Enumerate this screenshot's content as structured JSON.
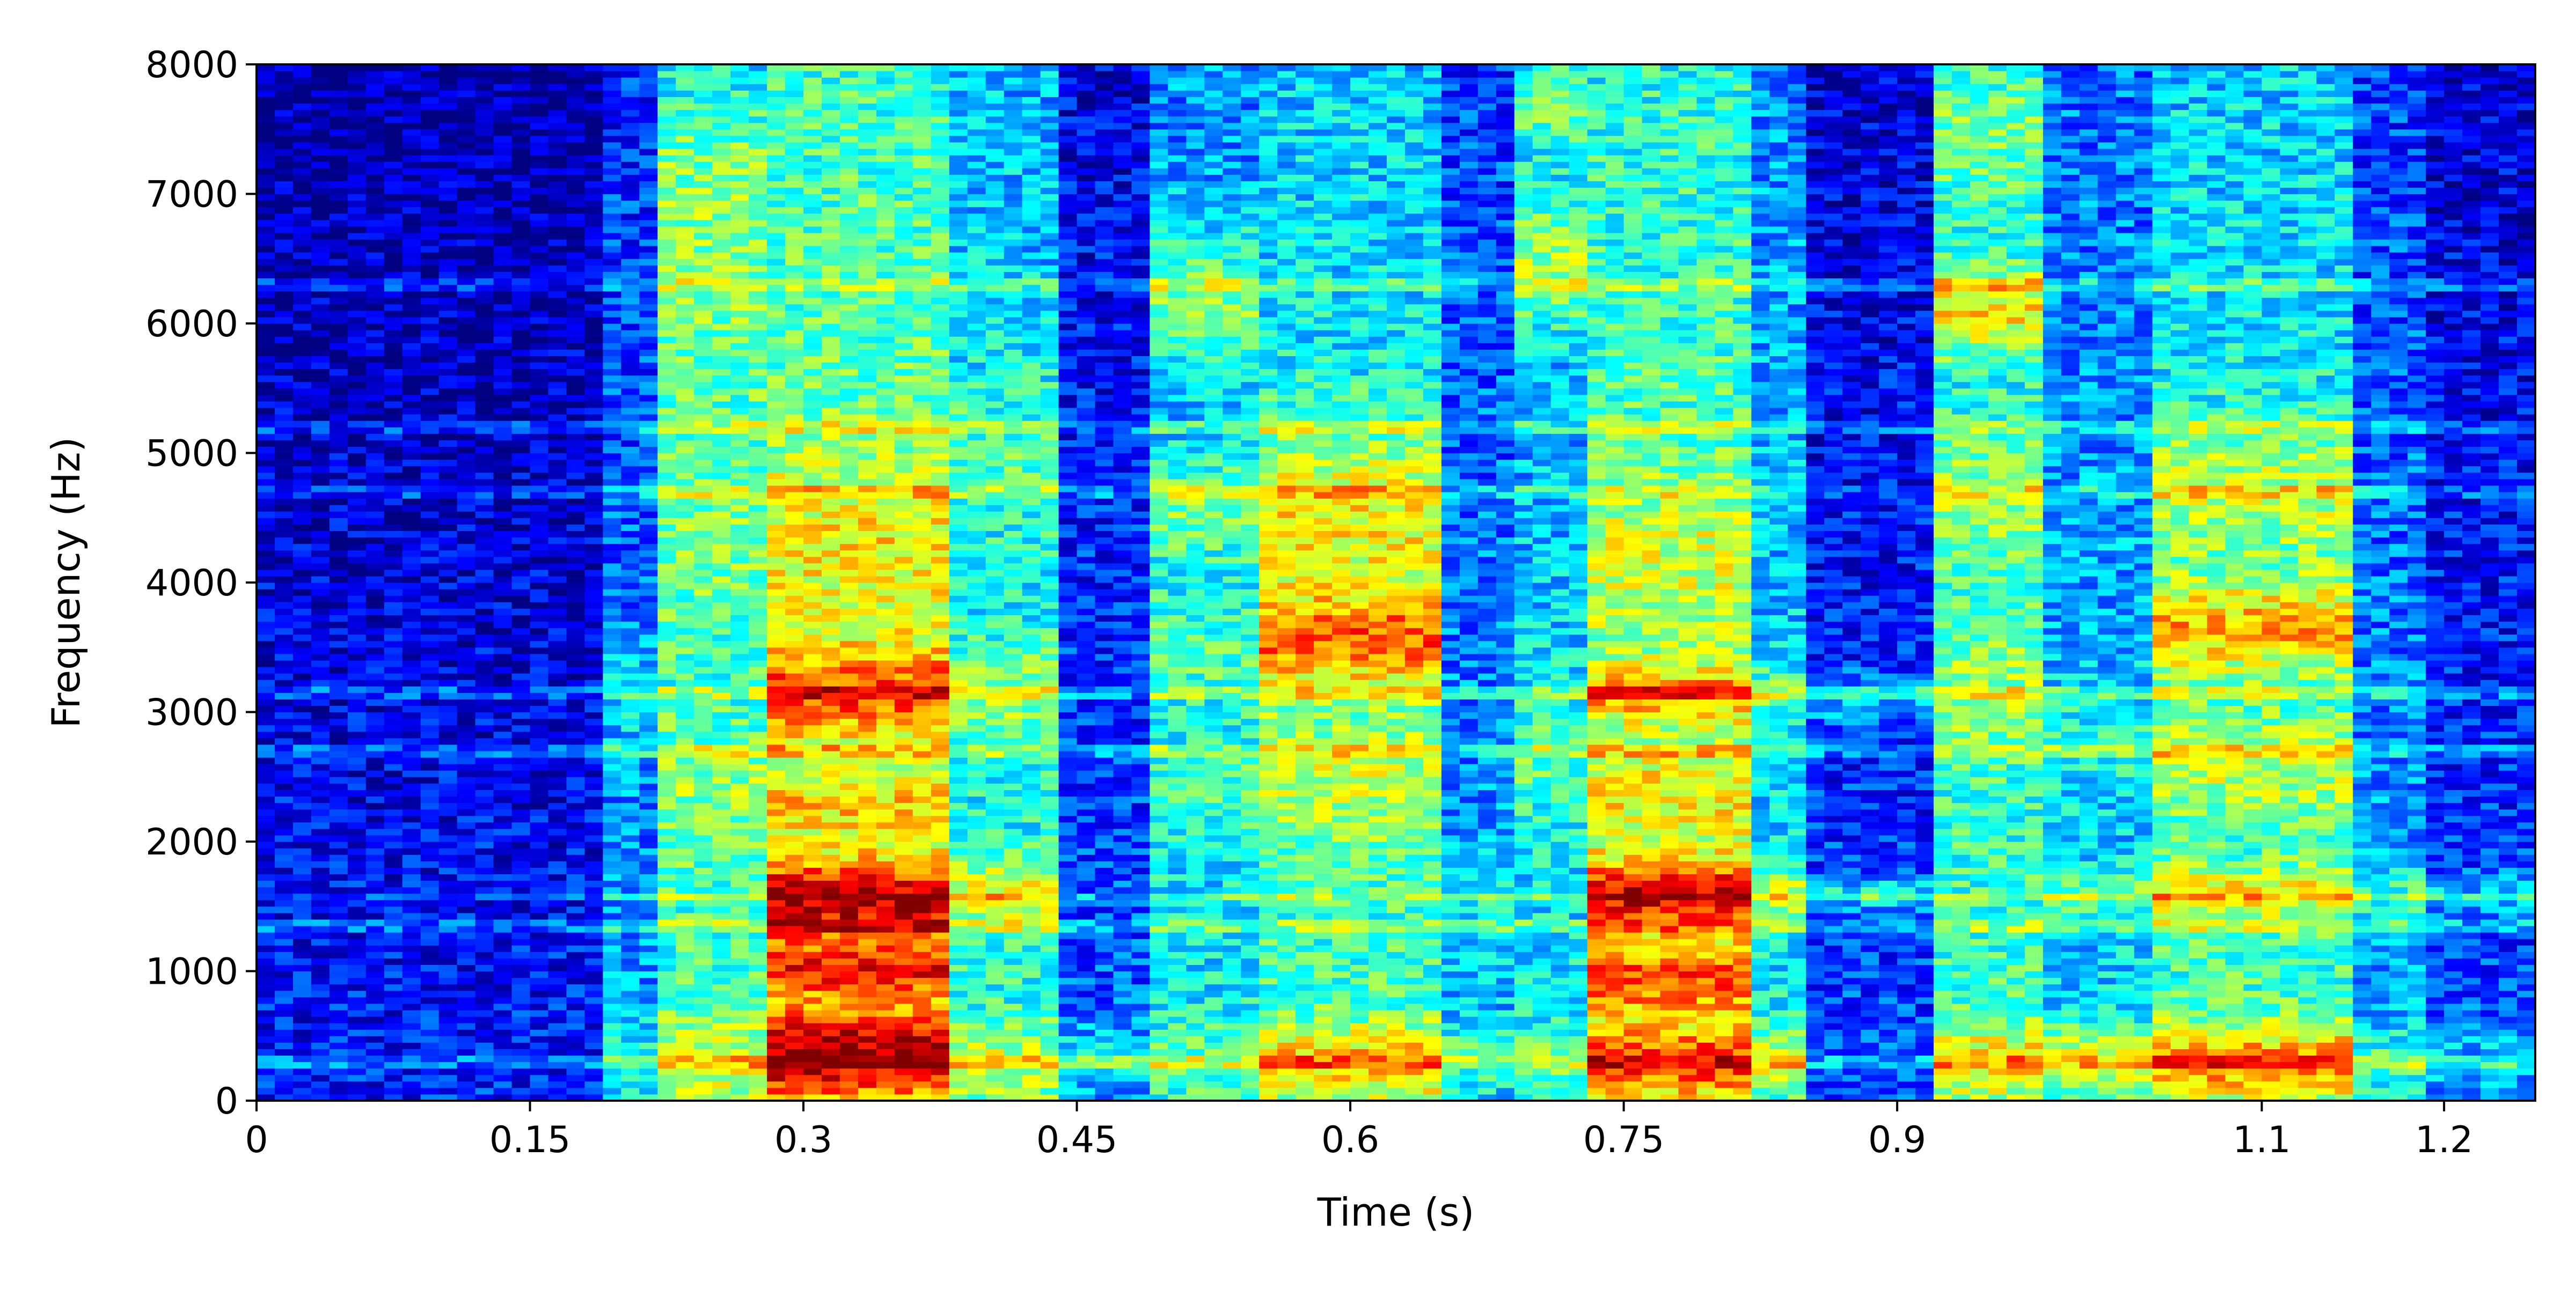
{
  "chart_data": {
    "type": "heatmap",
    "subtype": "spectrogram",
    "title": "",
    "xlabel": "Time (s)",
    "ylabel": "Frequency (Hz)",
    "xlim": [
      0,
      1.25
    ],
    "ylim": [
      0,
      8000
    ],
    "xticks": [
      0,
      0.15,
      0.3,
      0.45,
      0.6,
      0.75,
      0.9,
      1.1,
      1.2
    ],
    "xtick_labels": [
      "0",
      "0.15",
      "0.3",
      "0.45",
      "0.6",
      "0.75",
      "0.9",
      "1.1",
      "1.2"
    ],
    "yticks": [
      0,
      1000,
      2000,
      3000,
      4000,
      5000,
      6000,
      7000,
      8000
    ],
    "ytick_labels": [
      "0",
      "1000",
      "2000",
      "3000",
      "4000",
      "5000",
      "6000",
      "7000",
      "8000"
    ],
    "colormap": "jet",
    "intensity_range": [
      0,
      1
    ],
    "grid": false,
    "legend": "none",
    "time_bins": 125,
    "freq_bins": 160,
    "segments": [
      {
        "start": 0.0,
        "end": 0.19,
        "level": 0.15,
        "formants": []
      },
      {
        "start": 0.19,
        "end": 0.22,
        "level": 0.28,
        "formants": [
          [
            300,
            0.1,
            300
          ],
          [
            3100,
            0.1,
            400
          ]
        ]
      },
      {
        "start": 0.22,
        "end": 0.28,
        "level": 0.45,
        "formants": [
          [
            300,
            0.15,
            250
          ],
          [
            2400,
            0.1,
            400
          ],
          [
            4300,
            0.1,
            600
          ],
          [
            6200,
            0.12,
            800
          ],
          [
            7200,
            0.1,
            500
          ]
        ]
      },
      {
        "start": 0.28,
        "end": 0.38,
        "level": 0.55,
        "formants": [
          [
            280,
            0.35,
            200
          ],
          [
            550,
            0.2,
            150
          ],
          [
            1000,
            0.3,
            150
          ],
          [
            1550,
            0.42,
            220
          ],
          [
            2300,
            0.15,
            200
          ],
          [
            3150,
            0.3,
            250
          ],
          [
            4300,
            0.15,
            500
          ]
        ]
      },
      {
        "start": 0.38,
        "end": 0.44,
        "level": 0.42,
        "formants": [
          [
            300,
            0.15,
            200
          ],
          [
            1600,
            0.2,
            200
          ],
          [
            3150,
            0.15,
            300
          ],
          [
            5000,
            0.1,
            500
          ]
        ]
      },
      {
        "start": 0.44,
        "end": 0.49,
        "level": 0.22,
        "formants": [
          [
            300,
            0.15,
            200
          ]
        ]
      },
      {
        "start": 0.49,
        "end": 0.55,
        "level": 0.38,
        "formants": [
          [
            300,
            0.1,
            200
          ],
          [
            2400,
            0.1,
            300
          ],
          [
            3500,
            0.12,
            400
          ],
          [
            4600,
            0.18,
            300
          ],
          [
            6200,
            0.2,
            400
          ]
        ]
      },
      {
        "start": 0.55,
        "end": 0.65,
        "level": 0.45,
        "formants": [
          [
            300,
            0.25,
            200
          ],
          [
            2500,
            0.15,
            400
          ],
          [
            3550,
            0.35,
            250
          ],
          [
            4500,
            0.25,
            500
          ]
        ]
      },
      {
        "start": 0.65,
        "end": 0.69,
        "level": 0.3,
        "formants": [
          [
            350,
            0.15,
            200
          ],
          [
            1500,
            0.1,
            300
          ]
        ]
      },
      {
        "start": 0.69,
        "end": 0.73,
        "level": 0.38,
        "formants": [
          [
            300,
            0.1,
            200
          ],
          [
            2700,
            0.12,
            400
          ],
          [
            6500,
            0.25,
            400
          ],
          [
            7700,
            0.2,
            300
          ]
        ]
      },
      {
        "start": 0.73,
        "end": 0.82,
        "level": 0.52,
        "formants": [
          [
            300,
            0.3,
            200
          ],
          [
            950,
            0.3,
            200
          ],
          [
            1600,
            0.42,
            180
          ],
          [
            2400,
            0.15,
            300
          ],
          [
            3150,
            0.25,
            150
          ],
          [
            4200,
            0.12,
            500
          ]
        ]
      },
      {
        "start": 0.82,
        "end": 0.85,
        "level": 0.38,
        "formants": [
          [
            300,
            0.2,
            200
          ],
          [
            1600,
            0.2,
            150
          ],
          [
            3150,
            0.15,
            150
          ]
        ]
      },
      {
        "start": 0.85,
        "end": 0.92,
        "level": 0.2,
        "formants": [
          [
            1600,
            0.18,
            100
          ],
          [
            3100,
            0.15,
            150
          ]
        ]
      },
      {
        "start": 0.92,
        "end": 0.98,
        "level": 0.45,
        "formants": [
          [
            300,
            0.2,
            200
          ],
          [
            3200,
            0.12,
            400
          ],
          [
            4700,
            0.15,
            400
          ],
          [
            6100,
            0.28,
            250
          ],
          [
            7500,
            0.15,
            500
          ]
        ]
      },
      {
        "start": 0.98,
        "end": 1.04,
        "level": 0.35,
        "formants": [
          [
            300,
            0.25,
            200
          ],
          [
            1600,
            0.15,
            150
          ],
          [
            2800,
            0.1,
            300
          ]
        ]
      },
      {
        "start": 1.04,
        "end": 1.15,
        "level": 0.45,
        "formants": [
          [
            300,
            0.3,
            200
          ],
          [
            1600,
            0.2,
            150
          ],
          [
            2600,
            0.15,
            300
          ],
          [
            3650,
            0.3,
            250
          ],
          [
            4700,
            0.18,
            400
          ]
        ]
      },
      {
        "start": 1.15,
        "end": 1.19,
        "level": 0.3,
        "formants": [
          [
            300,
            0.15,
            200
          ],
          [
            1600,
            0.15,
            150
          ]
        ]
      },
      {
        "start": 1.19,
        "end": 1.25,
        "level": 0.2,
        "formants": [
          [
            300,
            0.12,
            200
          ],
          [
            1600,
            0.15,
            120
          ]
        ]
      }
    ],
    "stationary_tones_hz": [
      300,
      1350,
      1580,
      2700,
      3150,
      4700,
      5200,
      6300
    ]
  }
}
